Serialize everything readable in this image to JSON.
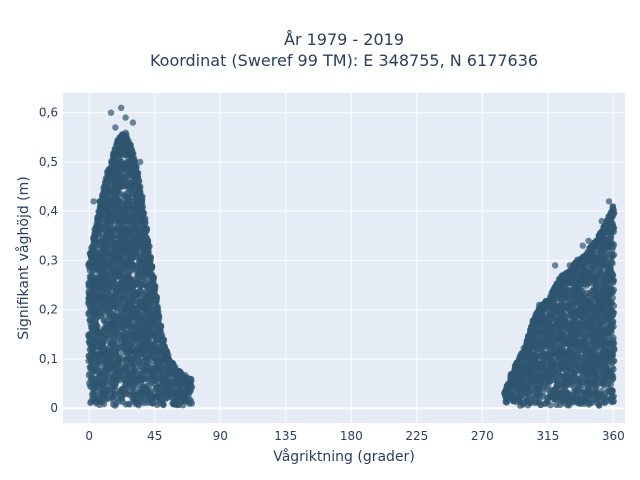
{
  "chart_data": {
    "type": "scatter",
    "title_line1": "År 1979 - 2019",
    "title_line2": "Koordinat (Sweref 99 TM): E 348755, N 6177636",
    "xlabel": "Vågriktning (grader)",
    "ylabel": "Signifikant våghöjd (m)",
    "xlim": [
      -18,
      368
    ],
    "ylim": [
      -0.03,
      0.64
    ],
    "x_ticks": [
      0,
      45,
      90,
      135,
      180,
      225,
      270,
      315,
      360
    ],
    "x_tick_labels": [
      "0",
      "45",
      "90",
      "135",
      "180",
      "225",
      "270",
      "315",
      "360"
    ],
    "y_ticks": [
      0,
      0.1,
      0.2,
      0.3,
      0.4,
      0.5,
      0.6
    ],
    "y_tick_labels": [
      "0",
      "0,1",
      "0,2",
      "0,3",
      "0,4",
      "0,5",
      "0,6"
    ],
    "grid": true,
    "marker_color": "#2f5570",
    "envelope": [
      {
        "x": 0,
        "y": 0.3
      },
      {
        "x": 5,
        "y": 0.38
      },
      {
        "x": 10,
        "y": 0.45
      },
      {
        "x": 15,
        "y": 0.5
      },
      {
        "x": 20,
        "y": 0.55
      },
      {
        "x": 25,
        "y": 0.56
      },
      {
        "x": 30,
        "y": 0.52
      },
      {
        "x": 35,
        "y": 0.45
      },
      {
        "x": 40,
        "y": 0.35
      },
      {
        "x": 45,
        "y": 0.25
      },
      {
        "x": 50,
        "y": 0.15
      },
      {
        "x": 55,
        "y": 0.1
      },
      {
        "x": 60,
        "y": 0.08
      },
      {
        "x": 65,
        "y": 0.07
      },
      {
        "x": 70,
        "y": 0.06
      },
      {
        "x": 285,
        "y": 0.03
      },
      {
        "x": 290,
        "y": 0.07
      },
      {
        "x": 295,
        "y": 0.1
      },
      {
        "x": 300,
        "y": 0.13
      },
      {
        "x": 305,
        "y": 0.18
      },
      {
        "x": 310,
        "y": 0.21
      },
      {
        "x": 315,
        "y": 0.22
      },
      {
        "x": 320,
        "y": 0.25
      },
      {
        "x": 325,
        "y": 0.27
      },
      {
        "x": 330,
        "y": 0.28
      },
      {
        "x": 335,
        "y": 0.3
      },
      {
        "x": 340,
        "y": 0.31
      },
      {
        "x": 345,
        "y": 0.33
      },
      {
        "x": 350,
        "y": 0.35
      },
      {
        "x": 355,
        "y": 0.38
      },
      {
        "x": 360,
        "y": 0.41
      }
    ],
    "peak_points": [
      {
        "x": 22,
        "y": 0.61
      },
      {
        "x": 15,
        "y": 0.6
      },
      {
        "x": 25,
        "y": 0.59
      },
      {
        "x": 30,
        "y": 0.58
      },
      {
        "x": 18,
        "y": 0.57
      },
      {
        "x": 35,
        "y": 0.5
      },
      {
        "x": 3,
        "y": 0.42
      },
      {
        "x": 7,
        "y": 0.42
      },
      {
        "x": 357,
        "y": 0.42
      },
      {
        "x": 352,
        "y": 0.38
      },
      {
        "x": 350,
        "y": 0.35
      },
      {
        "x": 358,
        "y": 0.33
      },
      {
        "x": 339,
        "y": 0.33
      },
      {
        "x": 343,
        "y": 0.34
      },
      {
        "x": 330,
        "y": 0.29
      },
      {
        "x": 320,
        "y": 0.29
      },
      {
        "x": 325,
        "y": 0.27
      },
      {
        "x": 309,
        "y": 0.21
      },
      {
        "x": 312,
        "y": 0.21
      },
      {
        "x": 285,
        "y": 0.03
      }
    ]
  }
}
